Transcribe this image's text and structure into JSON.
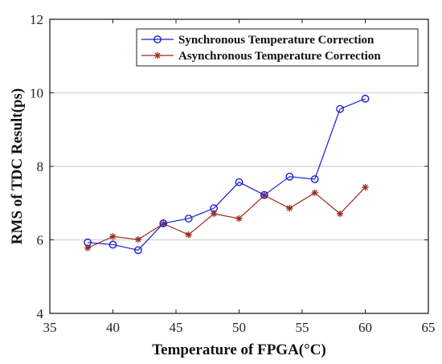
{
  "chart_data": {
    "type": "line",
    "title": "",
    "xlabel": "Temperature of FPGA(°C)",
    "ylabel": "RMS of TDC Result(ps)",
    "xlim": [
      35,
      65
    ],
    "ylim": [
      4,
      12
    ],
    "xticks": [
      35,
      40,
      45,
      50,
      55,
      60,
      65
    ],
    "yticks": [
      4,
      6,
      8,
      10,
      12
    ],
    "grid": "horizontal",
    "legend_position": "top-right",
    "x": [
      38,
      40,
      42,
      44,
      46,
      48,
      50,
      52,
      54,
      56,
      58,
      60
    ],
    "series": [
      {
        "name": "Synchronous Temperature Correction",
        "color": "#1f1fcf",
        "marker": "circle",
        "values": [
          5.93,
          5.87,
          5.72,
          6.45,
          6.58,
          6.86,
          7.57,
          7.22,
          7.72,
          7.65,
          9.56,
          9.84
        ]
      },
      {
        "name": "Asynchronous Temperature Correction",
        "color": "#9b2a1a",
        "marker": "asterisk",
        "values": [
          5.78,
          6.09,
          6.01,
          6.44,
          6.14,
          6.71,
          6.58,
          7.21,
          6.86,
          7.28,
          6.71,
          7.43
        ]
      }
    ]
  }
}
